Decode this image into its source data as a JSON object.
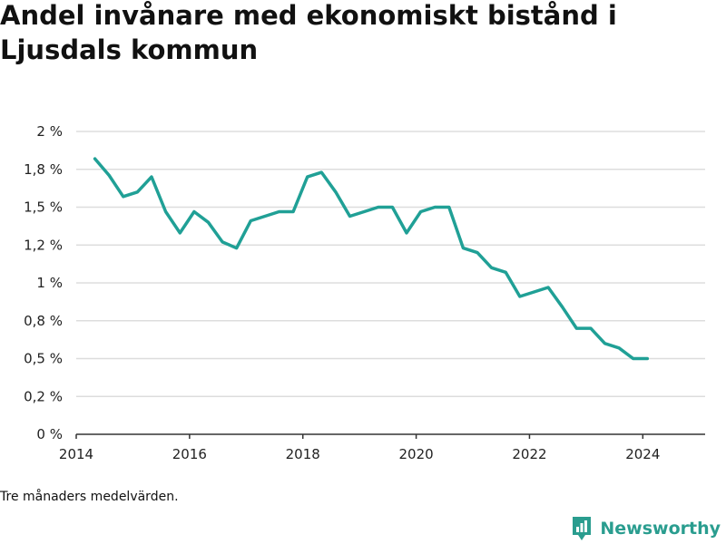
{
  "title": "Andel invånare med ekonomiskt bistånd i Ljusdals kommun",
  "note": "Tre månaders medelvärden.",
  "brand": {
    "name": "Newsworthy",
    "icon": "newsworthy-logo-icon",
    "color": "#2a9d8f"
  },
  "colors": {
    "line": "#20a096",
    "grid": "#dddddd",
    "axis": "#333333"
  },
  "chart_data": {
    "type": "line",
    "title": "Andel invånare med ekonomiskt bistånd i Ljusdals kommun",
    "xlabel": "",
    "ylabel": "",
    "xlim": [
      2014,
      2025.1
    ],
    "ylim": [
      0,
      2
    ],
    "x_ticks": [
      2014,
      2016,
      2018,
      2020,
      2022,
      2024
    ],
    "x_tick_labels": [
      "2014",
      "2016",
      "2018",
      "2020",
      "2022",
      "2024"
    ],
    "y_ticks": [
      0,
      0.25,
      0.5,
      0.75,
      1,
      1.25,
      1.5,
      1.75,
      2
    ],
    "y_tick_labels": [
      "0 %",
      "0,2 %",
      "0,5 %",
      "0,8 %",
      "1 %",
      "1,2 %",
      "1,5 %",
      "1,8 %",
      "2 %"
    ],
    "grid": true,
    "series": [
      {
        "x": [
          2014.33,
          2014.58,
          2014.83,
          2015.08,
          2015.33,
          2015.58,
          2015.83,
          2016.08,
          2016.33,
          2016.58,
          2016.83,
          2017.08,
          2017.33,
          2017.58,
          2017.83,
          2018.08,
          2018.33,
          2018.58,
          2018.83,
          2019.08,
          2019.33,
          2019.58,
          2019.83,
          2020.08,
          2020.33,
          2020.58,
          2020.83,
          2021.08,
          2021.33,
          2021.58,
          2021.83,
          2022.08,
          2022.33,
          2022.58,
          2022.83,
          2023.08,
          2023.33,
          2023.58,
          2023.83,
          2024.08
        ],
        "values": [
          1.82,
          1.71,
          1.57,
          1.6,
          1.7,
          1.47,
          1.33,
          1.47,
          1.4,
          1.27,
          1.23,
          1.41,
          1.44,
          1.47,
          1.47,
          1.7,
          1.73,
          1.6,
          1.44,
          1.47,
          1.5,
          1.5,
          1.33,
          1.47,
          1.5,
          1.5,
          1.23,
          1.2,
          1.1,
          1.07,
          0.91,
          0.94,
          0.97,
          0.84,
          0.7,
          0.7,
          0.6,
          0.57,
          0.5,
          0.5
        ]
      }
    ]
  }
}
